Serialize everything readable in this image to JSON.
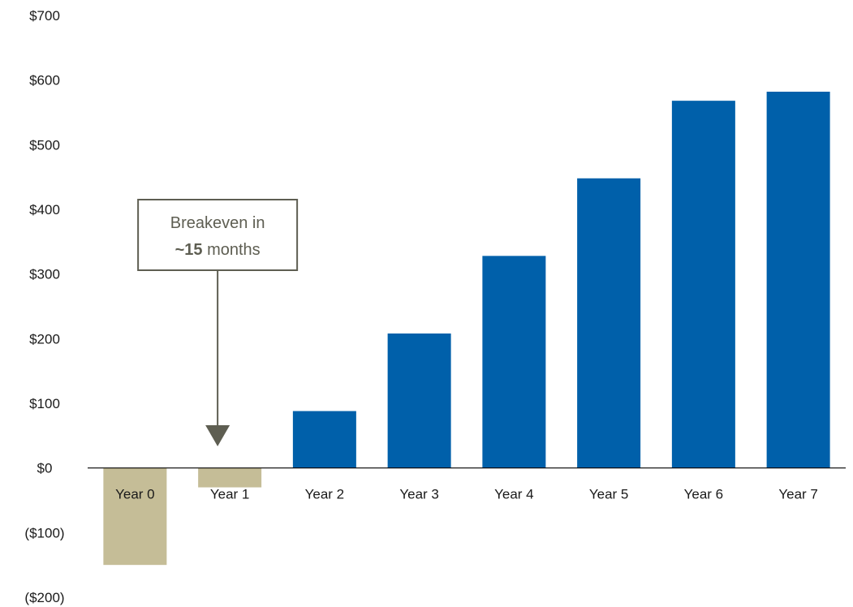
{
  "chart_data": {
    "type": "bar",
    "title": "",
    "xlabel": "",
    "ylabel": "",
    "categories": [
      "Year 0",
      "Year 1",
      "Year 2",
      "Year 3",
      "Year 4",
      "Year 5",
      "Year 6",
      "Year 7"
    ],
    "values": [
      -150,
      -30,
      88,
      208,
      328,
      448,
      568,
      582
    ],
    "ylim": [
      -200,
      700
    ],
    "y_ticks": [
      700,
      600,
      500,
      400,
      300,
      200,
      100,
      0,
      -100,
      -200
    ],
    "y_tick_labels": [
      "$700",
      "$600",
      "$500",
      "$400",
      "$300",
      "$200",
      "$100",
      "$0",
      "($100)",
      "($200)"
    ],
    "grid": false,
    "colors": {
      "positive": "#0060AA",
      "negative": "#C5BD97",
      "axis": "#000000",
      "annotation": "#5E5E52"
    },
    "annotation": {
      "line1": "Breakeven in",
      "line2_bold": "~15",
      "line2_rest": " months",
      "target_category": "Year 1"
    }
  }
}
